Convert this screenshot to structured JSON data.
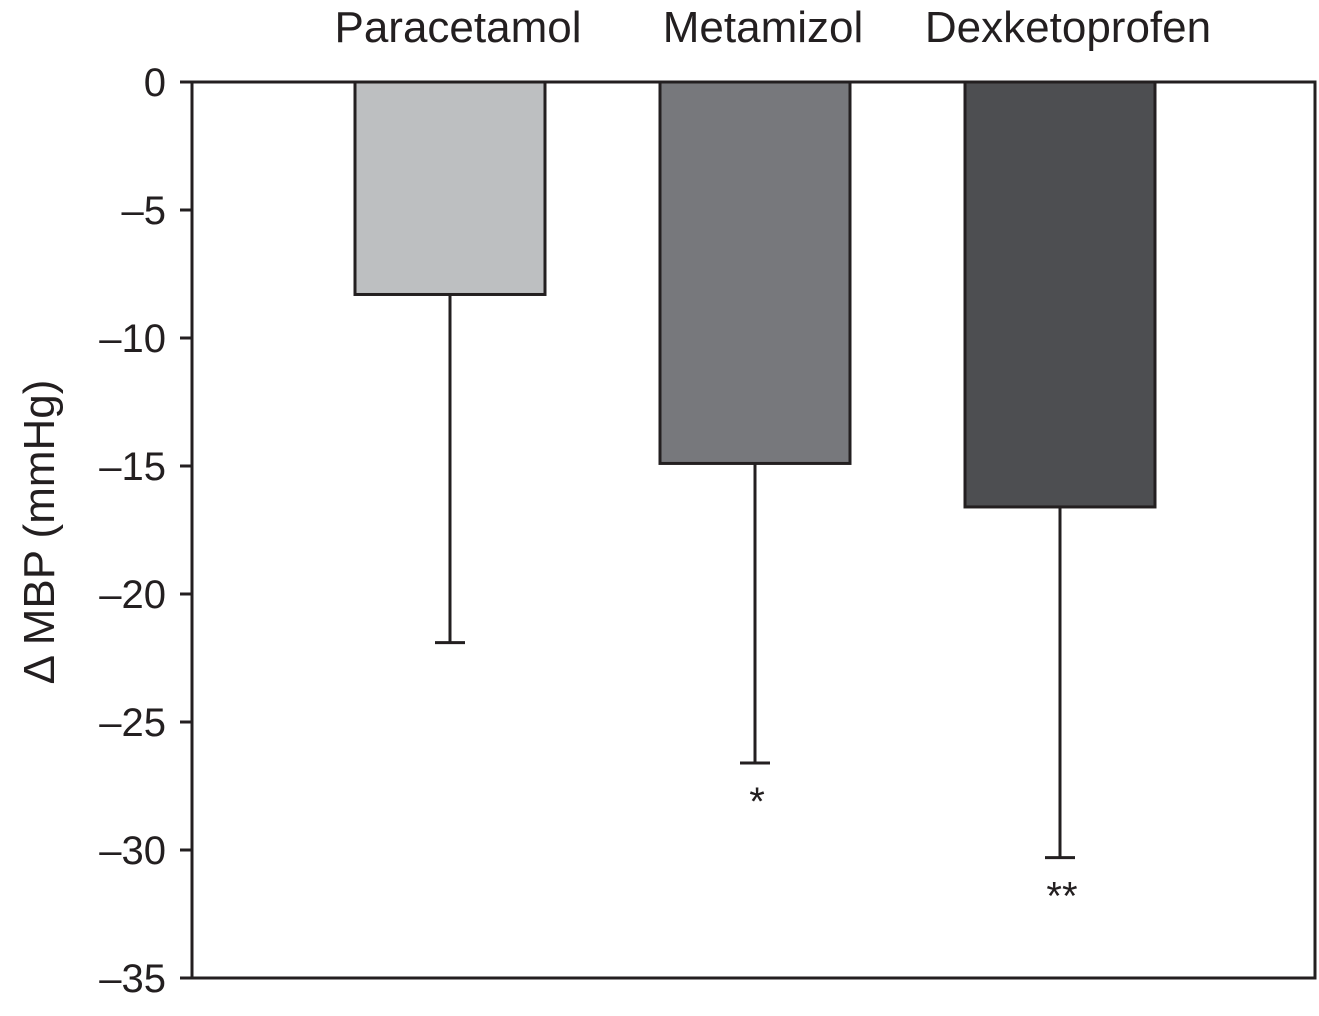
{
  "chart_data": {
    "type": "bar",
    "title": "",
    "xlabel": "",
    "ylabel": "Δ MBP (mmHg)",
    "ylim": [
      -35,
      0
    ],
    "yticks": [
      0,
      -5,
      -10,
      -15,
      -20,
      -25,
      -30,
      -35
    ],
    "ytick_labels": [
      "0",
      "–5",
      "–10",
      "–15",
      "–20",
      "–25",
      "–30",
      "–35"
    ],
    "categories": [
      "Paracetamol",
      "Metamizol",
      "Dexketoprofen"
    ],
    "values": [
      -8.3,
      -14.9,
      -16.6
    ],
    "error": [
      13.6,
      11.7,
      13.7
    ],
    "significance": [
      "",
      "*",
      "**"
    ],
    "colors": [
      "#bdbfc1",
      "#77787c",
      "#4d4e51"
    ],
    "category_label_position": "top",
    "grid": false,
    "legend": "none"
  }
}
